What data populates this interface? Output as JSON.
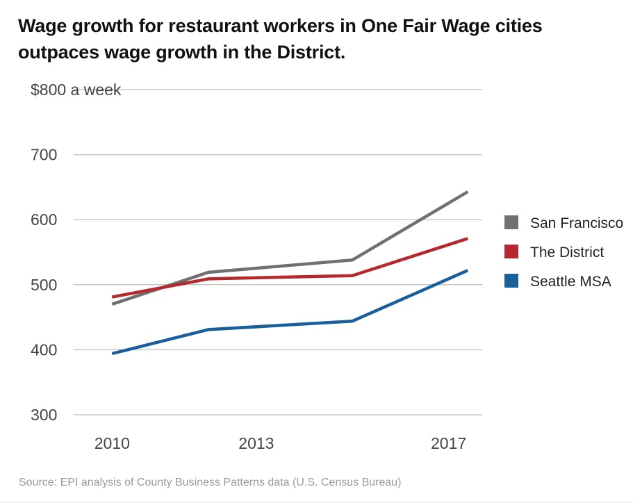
{
  "chart_data": {
    "type": "line",
    "title": "Wage growth for restaurant workers in One Fair Wage cities outpaces wage growth in the District.",
    "ylabel": "",
    "xlabel": "",
    "x_tick_labels": [
      "2010",
      "2013",
      "2017"
    ],
    "x_tick_positions": [
      2010,
      2013,
      2017
    ],
    "y_tick_values": [
      300,
      400,
      500,
      600,
      700,
      800
    ],
    "y_tick_labels": [
      "300",
      "400",
      "500",
      "600",
      "700",
      "$800 a week"
    ],
    "ylim": [
      300,
      800
    ],
    "xlim": [
      2009.2,
      2017.7
    ],
    "grid": true,
    "legend_position": "right",
    "series": [
      {
        "name": "San Francisco",
        "color": "#707070",
        "x": [
          2010,
          2012,
          2015,
          2017.4
        ],
        "values": [
          470,
          519,
          538,
          643
        ]
      },
      {
        "name": "The District",
        "color": "#b5282e",
        "x": [
          2010,
          2012,
          2015,
          2017.4
        ],
        "values": [
          481,
          509,
          514,
          571
        ]
      },
      {
        "name": "Seattle MSA",
        "color": "#1a5e9a",
        "x": [
          2010,
          2012,
          2015,
          2017.4
        ],
        "values": [
          394,
          431,
          444,
          522
        ]
      }
    ],
    "source": "Source: EPI analysis of County Business Patterns data (U.S. Census Bureau)"
  }
}
